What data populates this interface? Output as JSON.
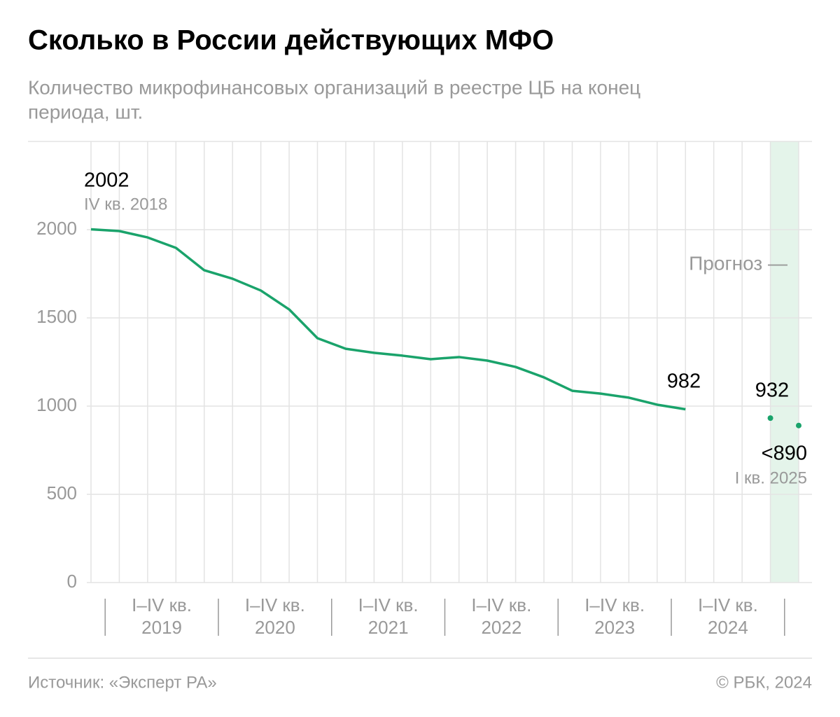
{
  "chart_data": {
    "type": "line",
    "title": "Сколько в России действующих МФО",
    "subtitle": [
      "Количество микрофинансовых организаций в реестре ЦБ на конец",
      "периода, шт."
    ],
    "categories": [
      null,
      null,
      null,
      null,
      null,
      null,
      null,
      null,
      null,
      null,
      null,
      null,
      null,
      null,
      null,
      null,
      null,
      null,
      null,
      null,
      null,
      null,
      null,
      null,
      null,
      null
    ],
    "x_group_labels": [
      [
        "I–IV кв.",
        "2019"
      ],
      [
        "I–IV кв.",
        "2020"
      ],
      [
        "I–IV кв.",
        "2021"
      ],
      [
        "I–IV кв.",
        "2022"
      ],
      [
        "I–IV кв.",
        "2023"
      ],
      [
        "I–IV кв.",
        "2024"
      ]
    ],
    "series": [
      {
        "name": null,
        "color": "#1aa36b",
        "values": [
          2002,
          1992,
          1956,
          1897,
          1770,
          1722,
          1655,
          1548,
          1385,
          1325,
          1302,
          1286,
          1266,
          1278,
          1258,
          1222,
          1163,
          1087,
          1071,
          1048,
          1008,
          982,
          null,
          null,
          null,
          null
        ]
      },
      {
        "name": "Прогноз —",
        "color": "#1aa36b",
        "values": [
          null,
          null,
          null,
          null,
          null,
          null,
          null,
          null,
          null,
          null,
          null,
          null,
          null,
          null,
          null,
          null,
          null,
          null,
          null,
          null,
          null,
          null,
          null,
          null,
          932,
          890
        ],
        "value_labels": [
          null,
          null,
          null,
          null,
          null,
          null,
          null,
          null,
          null,
          null,
          null,
          null,
          null,
          null,
          null,
          null,
          null,
          null,
          null,
          null,
          null,
          null,
          null,
          null,
          null,
          "<890"
        ]
      }
    ],
    "annotations": [
      "IV кв. 2018",
      "I кв. 2025"
    ],
    "ylim": [
      0,
      2500
    ],
    "yticks": [
      0,
      500,
      1000,
      1500,
      2000
    ],
    "grid": true,
    "source": "Источник: «Эксперт РА»",
    "credit": "© РБК, 2024"
  }
}
